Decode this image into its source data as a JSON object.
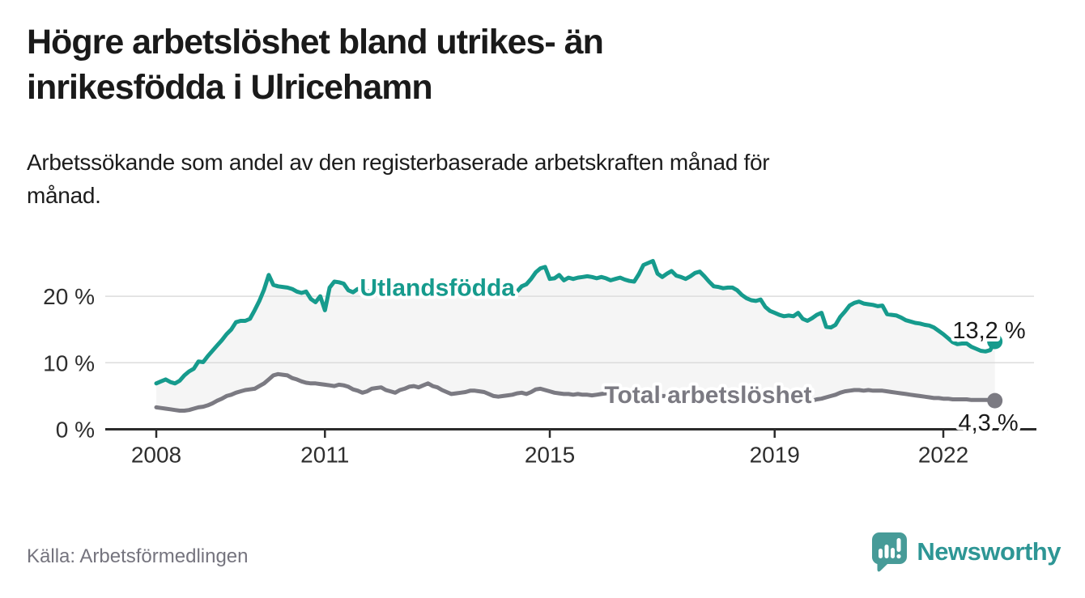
{
  "header": {
    "title_lines": [
      "Högre arbetslöshet bland utrikes- än",
      "inrikesfödda i Ulricehamn"
    ],
    "subtitle_lines": [
      "Arbetssökande som andel av den registerbaserade arbetskraften månad för",
      "månad."
    ]
  },
  "chart_data": {
    "type": "line",
    "title": "Högre arbetslöshet bland utrikes- än inrikesfödda i Ulricehamn",
    "subtitle": "Arbetssökande som andel av den registerbaserade arbetskraften månad för månad.",
    "unit": "%",
    "x_start_year": 2008,
    "x_resolution": "monthly",
    "x_ticks": [
      2008,
      2011,
      2015,
      2019,
      2022
    ],
    "y_ticks": [
      {
        "value": 0,
        "label": "0 %"
      },
      {
        "value": 10,
        "label": "10 %"
      },
      {
        "value": 20,
        "label": "20 %"
      }
    ],
    "ylim": [
      0,
      26
    ],
    "grid": "horizontal",
    "legend_position": "inline-on-line",
    "band_fill_between_series": true,
    "colors": {
      "band_fill": "#f5f5f5",
      "gridline": "#dcdcdc",
      "axis": "#2b2b2b",
      "tick_text": "#2e2e2e"
    },
    "series": [
      {
        "name": "Utlandsfödda",
        "color": "#169b8d",
        "line_label": {
          "text": "Utlandsfödda",
          "x": 2011.62,
          "y": 21.3
        },
        "end_value_label": "13,2 %",
        "values": [
          6.9,
          7.2,
          7.5,
          7.1,
          6.9,
          7.3,
          8.1,
          8.7,
          9.1,
          10.2,
          10.1,
          11.0,
          11.8,
          12.6,
          13.4,
          14.3,
          15.0,
          16.1,
          16.3,
          16.3,
          16.6,
          17.9,
          19.3,
          21.0,
          23.2,
          21.7,
          21.5,
          21.4,
          21.3,
          21.1,
          20.7,
          20.5,
          20.7,
          19.6,
          19.1,
          20.0,
          17.9,
          21.3,
          22.2,
          22.1,
          21.9,
          20.9,
          20.6,
          21.1,
          21.0,
          20.8,
          20.6,
          20.7,
          20.5,
          20.4,
          20.6,
          20.5,
          20.3,
          20.4,
          20.6,
          20.5,
          20.3,
          20.2,
          20.4,
          20.5,
          20.4,
          20.3,
          20.2,
          20.4,
          20.3,
          20.1,
          20.2,
          20.4,
          20.3,
          20.2,
          20.3,
          20.5,
          20.4,
          20.3,
          20.4,
          20.5,
          20.6,
          20.7,
          21.5,
          21.8,
          22.6,
          23.6,
          24.2,
          24.4,
          22.6,
          22.7,
          23.2,
          22.4,
          22.8,
          22.6,
          22.8,
          22.9,
          23.0,
          22.9,
          22.7,
          22.9,
          22.7,
          22.4,
          22.6,
          22.8,
          22.5,
          22.3,
          22.2,
          23.3,
          24.7,
          25.0,
          25.3,
          23.4,
          22.9,
          23.4,
          23.8,
          23.1,
          22.9,
          22.6,
          23.0,
          23.5,
          23.7,
          23.0,
          22.2,
          21.5,
          21.4,
          21.2,
          21.3,
          21.3,
          20.9,
          20.2,
          19.7,
          19.4,
          19.3,
          19.5,
          18.4,
          17.8,
          17.5,
          17.2,
          17.0,
          17.1,
          17.0,
          17.5,
          16.6,
          16.3,
          16.7,
          17.2,
          17.5,
          15.4,
          15.3,
          15.7,
          16.9,
          17.7,
          18.6,
          19.0,
          19.2,
          18.9,
          18.8,
          18.7,
          18.5,
          18.6,
          17.3,
          17.2,
          17.1,
          16.8,
          16.4,
          16.2,
          16.0,
          15.9,
          15.7,
          15.6,
          15.3,
          14.8,
          14.3,
          13.7,
          13.1,
          12.8,
          12.9,
          12.9,
          12.4,
          12.1,
          11.8,
          11.7,
          11.9,
          13.2
        ]
      },
      {
        "name": "Total arbetslöshet",
        "color": "#7b7a82",
        "line_label": {
          "text": "Total arbetslöshet",
          "x": 2015.97,
          "y": 5.15
        },
        "end_value_label": "4,3 %",
        "values": [
          3.3,
          3.2,
          3.1,
          3.0,
          2.9,
          2.8,
          2.8,
          2.9,
          3.1,
          3.3,
          3.4,
          3.6,
          3.9,
          4.3,
          4.6,
          5.0,
          5.2,
          5.5,
          5.7,
          5.9,
          6.0,
          6.1,
          6.5,
          6.9,
          7.5,
          8.1,
          8.3,
          8.2,
          8.1,
          7.7,
          7.5,
          7.2,
          7.0,
          6.9,
          6.9,
          6.8,
          6.7,
          6.6,
          6.5,
          6.7,
          6.6,
          6.4,
          6.0,
          5.8,
          5.5,
          5.7,
          6.1,
          6.2,
          6.3,
          5.9,
          5.7,
          5.5,
          5.9,
          6.1,
          6.4,
          6.5,
          6.3,
          6.6,
          6.9,
          6.5,
          6.3,
          5.9,
          5.6,
          5.3,
          5.4,
          5.5,
          5.6,
          5.8,
          5.8,
          5.7,
          5.6,
          5.3,
          5.0,
          4.9,
          5.0,
          5.1,
          5.2,
          5.4,
          5.5,
          5.3,
          5.6,
          6.0,
          6.1,
          5.9,
          5.7,
          5.5,
          5.4,
          5.3,
          5.3,
          5.2,
          5.3,
          5.2,
          5.2,
          5.1,
          5.2,
          5.3,
          5.4,
          5.4,
          5.3,
          5.3,
          5.2,
          5.2,
          5.3,
          5.3,
          5.2,
          5.1,
          5.1,
          5.0,
          5.0,
          5.0,
          4.9,
          4.9,
          4.8,
          4.8,
          4.9,
          4.9,
          4.8,
          4.7,
          4.7,
          4.6,
          4.6,
          4.6,
          4.5,
          4.5,
          4.4,
          4.4,
          4.5,
          4.5,
          4.4,
          4.4,
          4.3,
          4.3,
          4.4,
          4.4,
          4.3,
          4.3,
          4.3,
          4.4,
          4.4,
          4.4,
          4.3,
          4.5,
          4.6,
          4.8,
          5.0,
          5.2,
          5.5,
          5.7,
          5.8,
          5.9,
          5.9,
          5.8,
          5.9,
          5.8,
          5.8,
          5.8,
          5.7,
          5.6,
          5.5,
          5.4,
          5.3,
          5.2,
          5.1,
          5.0,
          4.9,
          4.8,
          4.7,
          4.7,
          4.6,
          4.6,
          4.5,
          4.5,
          4.5,
          4.5,
          4.4,
          4.4,
          4.4,
          4.4,
          4.4,
          4.3
        ]
      }
    ]
  },
  "footer": {
    "source": "Källa: Arbetsförmedlingen",
    "brand": "Newsworthy",
    "brand_color": "#2e9695",
    "brand_bubble_color": "#479b98"
  }
}
